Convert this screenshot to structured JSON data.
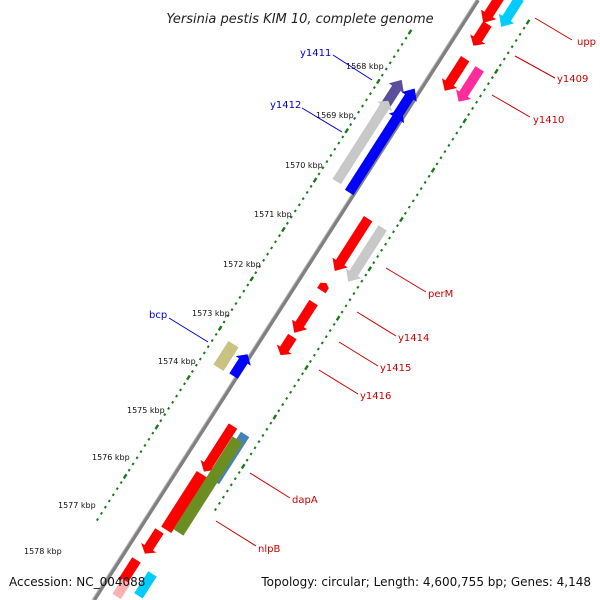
{
  "title": "Yersinia pestis KIM 10, complete genome",
  "footer": {
    "accession": "Accession: NC_004088",
    "summary": "Topology: circular; Length: 4,600,755 bp; Genes: 4,148"
  },
  "colors": {
    "backbone": "#808080",
    "tick": "#1a7a1a",
    "leader_plus": "#0000cc",
    "leader_minus": "#cc0000"
  },
  "ticks": [
    "1568 kbp",
    "1569 kbp",
    "1570 kbp",
    "1571 kbp",
    "1572 kbp",
    "1573 kbp",
    "1574 kbp",
    "1575 kbp",
    "1576 kbp",
    "1577 kbp",
    "1578 kbp"
  ],
  "gene_labels": {
    "plus": [
      "y1411",
      "y1412",
      "bcp"
    ],
    "minus": [
      "upp",
      "y1409",
      "y1410",
      "perM",
      "y1414",
      "y1415",
      "y1416",
      "dapA",
      "nlpB"
    ]
  },
  "features": [
    {
      "kind": "gene",
      "color": "#ff0000",
      "label": "upp"
    },
    {
      "kind": "gene",
      "color": "#00ccff",
      "label": "upp"
    },
    {
      "kind": "gene",
      "color": "#ff0000",
      "label": "y1409"
    },
    {
      "kind": "gene",
      "color": "#ff0000",
      "label": "y1410"
    },
    {
      "kind": "gene",
      "color": "#ff2d9b",
      "label": "y1410"
    },
    {
      "kind": "gene",
      "color": "#5a4f9a",
      "label": "y1411"
    },
    {
      "kind": "gene",
      "color": "#0000ff",
      "label": "y1412"
    },
    {
      "kind": "gene",
      "color": "#c8c8c8",
      "label": "y1411"
    },
    {
      "kind": "gene",
      "color": "#0000ff",
      "label": "y1412"
    },
    {
      "kind": "gene",
      "color": "#ff0000",
      "label": "perM"
    },
    {
      "kind": "gene",
      "color": "#c8c8c8",
      "label": "perM"
    },
    {
      "kind": "gene",
      "color": "#ff0000",
      "label": "y1414"
    },
    {
      "kind": "gene",
      "color": "#ff0000",
      "label": "y1415"
    },
    {
      "kind": "gene",
      "color": "#ff0000",
      "label": "y1416"
    },
    {
      "kind": "gene",
      "color": "#c8c283",
      "label": "bcp"
    },
    {
      "kind": "gene",
      "color": "#0000ff",
      "label": "bcp"
    },
    {
      "kind": "gene",
      "color": "#ff0000",
      "label": "dapA"
    },
    {
      "kind": "gene",
      "color": "#4682b4",
      "label": "dapA"
    },
    {
      "kind": "gene",
      "color": "#ff0000",
      "label": "nlpB"
    },
    {
      "kind": "gene",
      "color": "#6b8e23",
      "label": "nlpB"
    },
    {
      "kind": "gene",
      "color": "#ff0000",
      "label": "nlpB"
    },
    {
      "kind": "gene",
      "color": "#ff0000",
      "label": ""
    },
    {
      "kind": "gene",
      "color": "#00ccff",
      "label": ""
    },
    {
      "kind": "gene",
      "color": "#ffb0b0",
      "label": ""
    }
  ]
}
